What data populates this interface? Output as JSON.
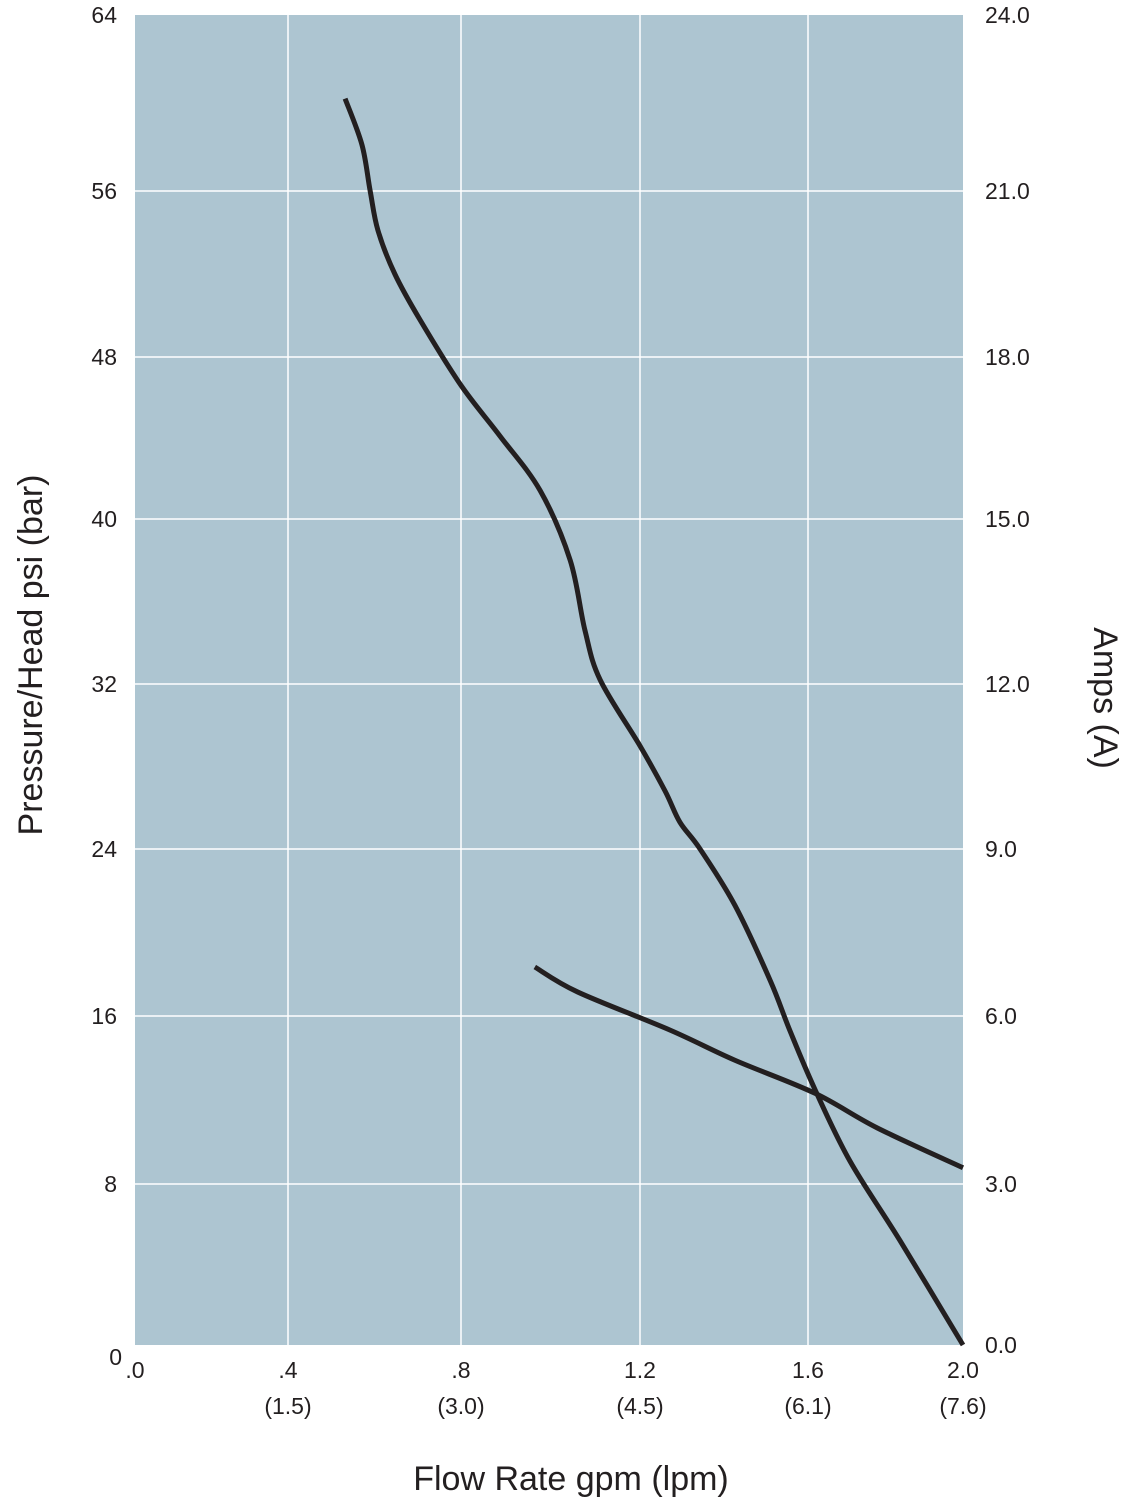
{
  "chart_data": {
    "type": "line",
    "title": "",
    "xlabel": "Flow Rate gpm (lpm)",
    "ylabel": "Pressure/Head psi (bar)",
    "y2label": "Amps (A)",
    "xlim": [
      0,
      2.0
    ],
    "ylim": [
      0,
      64
    ],
    "y2lim": [
      0,
      24
    ],
    "grid": true,
    "background_color": "#adc5d1",
    "line_color": "#231f20",
    "x_ticks": [
      {
        "value": 0,
        "label": ".0",
        "sub": ""
      },
      {
        "value": 0.4,
        "label": ".4",
        "sub": "(1.5)"
      },
      {
        "value": 0.8,
        "label": ".8",
        "sub": "(3.0)"
      },
      {
        "value": 1.2,
        "label": "1.2",
        "sub": "(4.5)"
      },
      {
        "value": 1.6,
        "label": "1.6",
        "sub": "(6.1)"
      },
      {
        "value": 2.0,
        "label": "2.0",
        "sub": "(7.6)"
      }
    ],
    "y_ticks": [
      {
        "value": 0,
        "label": "0"
      },
      {
        "value": 8,
        "label": "8"
      },
      {
        "value": 16,
        "label": "16"
      },
      {
        "value": 24,
        "label": "24"
      },
      {
        "value": 32,
        "label": "32"
      },
      {
        "value": 40,
        "label": "40"
      },
      {
        "value": 48,
        "label": "48"
      },
      {
        "value": 56,
        "label": "56"
      },
      {
        "value": 64,
        "label": "64"
      }
    ],
    "y2_ticks": [
      {
        "value": 0,
        "label": "0.0"
      },
      {
        "value": 3,
        "label": "3.0"
      },
      {
        "value": 6,
        "label": "6.0"
      },
      {
        "value": 9,
        "label": "9.0"
      },
      {
        "value": 12,
        "label": "12.0"
      },
      {
        "value": 15,
        "label": "15.0"
      },
      {
        "value": 18,
        "label": "18.0"
      },
      {
        "value": 21,
        "label": "21.0"
      },
      {
        "value": 24,
        "label": "24.0"
      }
    ],
    "series": [
      {
        "name": "Pressure",
        "axis": "left",
        "x": [
          0.532,
          0.571,
          0.59,
          0.608,
          0.647,
          0.705,
          0.8,
          0.887,
          0.977,
          1.044,
          1.077,
          1.111,
          1.2,
          1.26,
          1.295,
          1.343,
          1.426,
          1.51,
          1.557,
          1.618,
          1.708,
          1.837,
          2.0
        ],
        "y": [
          60.2,
          58.1,
          56.0,
          54.1,
          52.0,
          49.8,
          46.6,
          44.1,
          41.4,
          38.0,
          34.6,
          32.2,
          29.0,
          26.8,
          25.3,
          24.0,
          21.3,
          17.7,
          15.3,
          12.5,
          9.1,
          5.2,
          0
        ]
      },
      {
        "name": "Amps",
        "axis": "right",
        "x": [
          0.965,
          1.061,
          1.271,
          1.426,
          1.618,
          1.779,
          2.0
        ],
        "y": [
          6.88,
          6.43,
          5.75,
          5.21,
          4.62,
          4.0,
          3.29
        ]
      }
    ]
  }
}
